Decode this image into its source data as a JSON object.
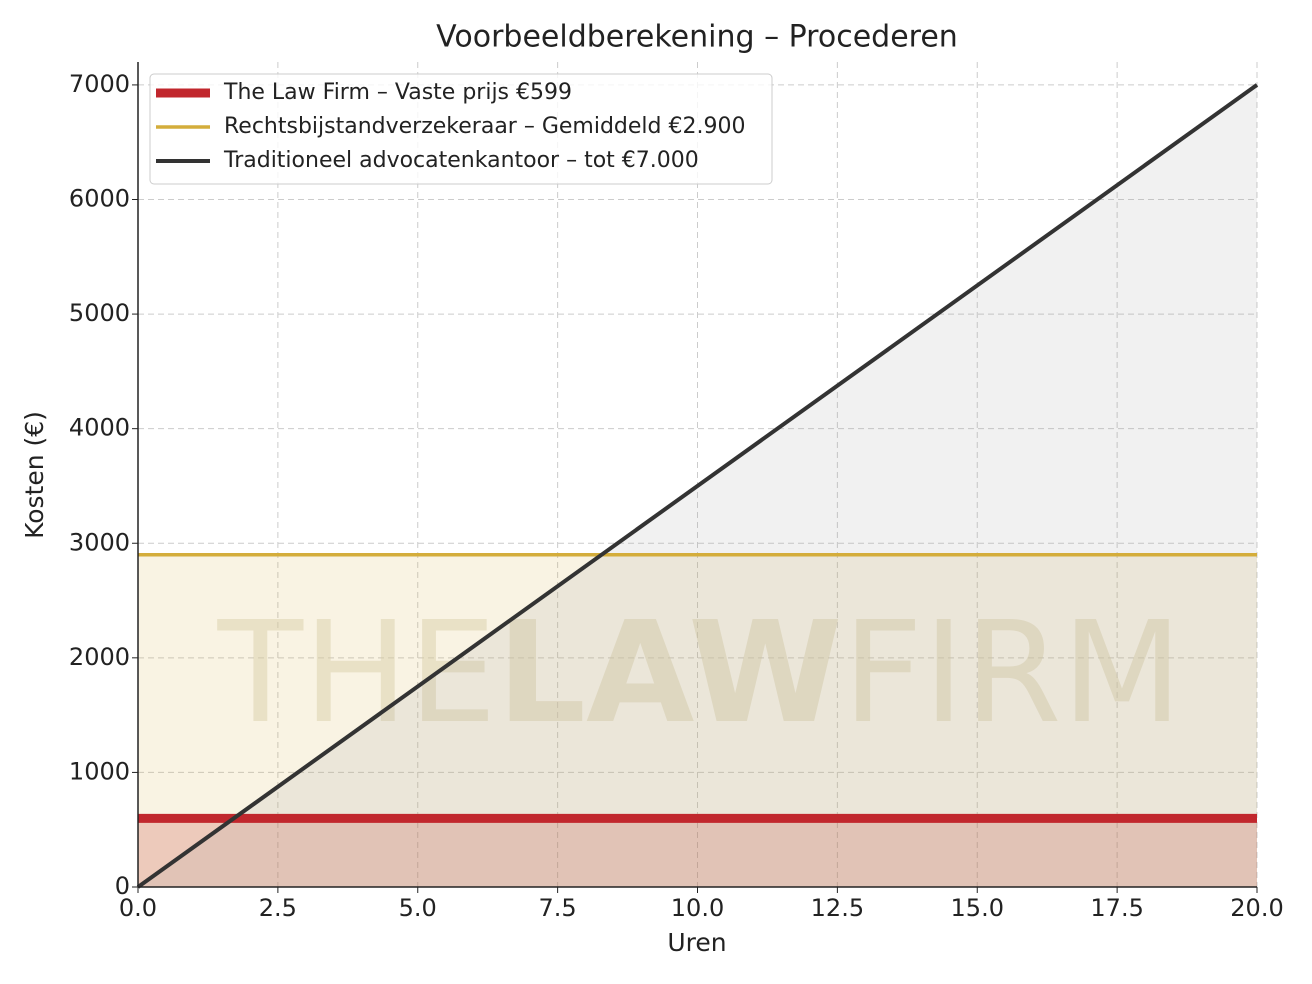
{
  "chart_data": {
    "type": "line",
    "title": "Voorbeeldberekening – Procederen",
    "x_label": "Uren",
    "y_label": "Kosten (€)",
    "x": [
      0,
      20
    ],
    "series": [
      {
        "name": "The Law Firm – Vaste prijs €599",
        "color": "#c1272d",
        "values": [
          599,
          599
        ]
      },
      {
        "name": "Rechtsbijstandverzekeraar – Gemiddeld €2.900",
        "color": "#d4ad3b",
        "values": [
          2900,
          2900
        ]
      },
      {
        "name": "Traditioneel advocatenkantoor – tot €7.000",
        "color": "#333333",
        "values": [
          0,
          7000
        ]
      }
    ],
    "xlim": [
      0,
      20
    ],
    "ylim": [
      0,
      7200
    ],
    "xticks": [
      {
        "value": 0,
        "label": "0.0"
      },
      2.5,
      {
        "value": 5,
        "label": "5.0"
      },
      7.5,
      {
        "value": 10,
        "label": "10.0"
      },
      12.5,
      {
        "value": 15,
        "label": "15.0"
      },
      17.5,
      {
        "value": 20,
        "label": "20.0"
      }
    ],
    "yticks": [
      0,
      1000,
      2000,
      3000,
      4000,
      5000,
      6000,
      7000
    ],
    "grid": true,
    "legend": "upper left",
    "fill_under": true,
    "watermark": [
      "THE",
      "LAW",
      "FIRM"
    ]
  }
}
